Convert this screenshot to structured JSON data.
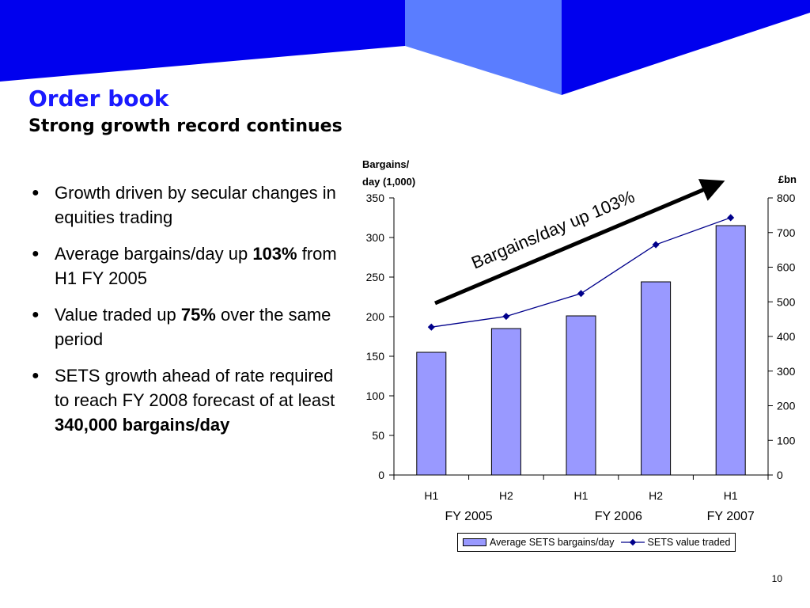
{
  "slide": {
    "title": "Order book",
    "subtitle": "Strong growth record continues",
    "page_number": "10",
    "bullet_symbol": "●",
    "bullets": [
      [
        {
          "text": "Growth driven by secular changes in equities trading",
          "bold": false
        }
      ],
      [
        {
          "text": "Average bargains/day up ",
          "bold": false
        },
        {
          "text": "103%",
          "bold": true
        },
        {
          "text": " from H1 FY 2005",
          "bold": false
        }
      ],
      [
        {
          "text": "Value traded up ",
          "bold": false
        },
        {
          "text": "75%",
          "bold": true
        },
        {
          "text": " over the same period",
          "bold": false
        }
      ],
      [
        {
          "text": "SETS growth ahead of rate required to reach FY 2008 forecast of at least ",
          "bold": false
        },
        {
          "text": "340,000 bargains/day",
          "bold": true
        }
      ]
    ],
    "colors": {
      "banner_dark": "#0000ee",
      "banner_light": "#5a7dff",
      "title": "#1a1aff",
      "bar_fill": "#9999ff",
      "line": "#00008b"
    }
  },
  "chart_data": {
    "type": "bar",
    "categories": [
      "H1",
      "H2",
      "H1",
      "H2",
      "H1"
    ],
    "groups": [
      {
        "label": "FY 2005",
        "span": [
          0,
          1
        ]
      },
      {
        "label": "FY 2006",
        "span": [
          2,
          3
        ]
      },
      {
        "label": "FY 2007",
        "span": [
          4,
          4
        ]
      }
    ],
    "left_axis_label": [
      "Bargains/",
      "day (1,000)"
    ],
    "right_axis_label": "£bn",
    "ylim_left": [
      0,
      350
    ],
    "yticks_left": [
      0,
      50,
      100,
      150,
      200,
      250,
      300,
      350
    ],
    "ylim_right": [
      0,
      800
    ],
    "yticks_right": [
      0,
      100,
      200,
      300,
      400,
      500,
      600,
      700,
      800
    ],
    "series": [
      {
        "name": "Average SETS bargains/day",
        "type": "bar",
        "axis": "left",
        "values": [
          155,
          185,
          201,
          244,
          315
        ]
      },
      {
        "name": "SETS value traded",
        "type": "line",
        "axis": "right",
        "values": [
          427,
          458,
          524,
          665,
          743
        ]
      }
    ],
    "annotation": "Bargains/day up 103%",
    "grid": false,
    "legend_position": "bottom"
  }
}
